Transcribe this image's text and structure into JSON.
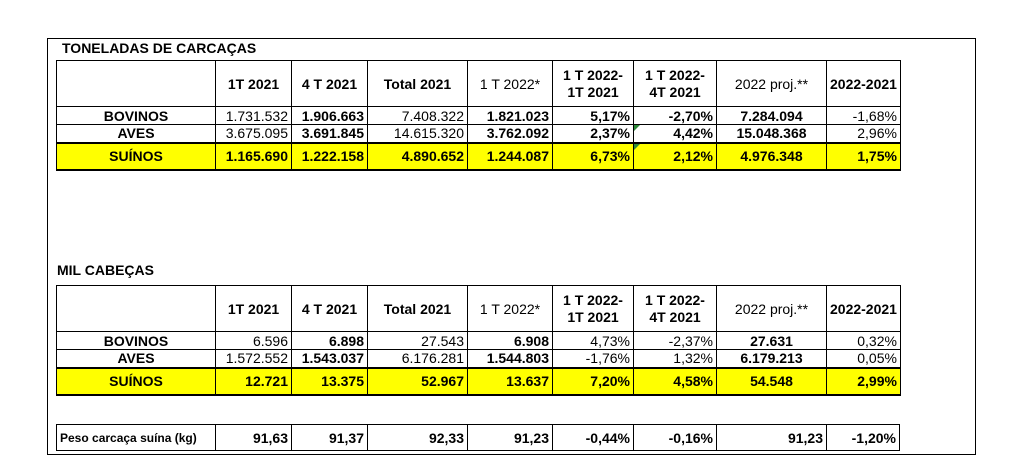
{
  "section1": {
    "title": "TONELADAS DE CARCAÇAS",
    "headers": [
      "",
      "1T 2021",
      "4 T 2021",
      "Total 2021",
      "1 T 2022*",
      "1 T 2022-\n1T 2021",
      "1 T 2022-\n4T 2021",
      "2022 proj.**",
      "2022-2021"
    ],
    "rows": [
      {
        "label": "BOVINOS",
        "values": [
          "1.731.532",
          "1.906.663",
          "7.408.322",
          "1.821.023",
          "5,17%",
          "-2,70%",
          "7.284.094",
          "-1,68%"
        ]
      },
      {
        "label": "AVES",
        "values": [
          "3.675.095",
          "3.691.845",
          "14.615.320",
          "3.762.092",
          "2,37%",
          "4,42%",
          "15.048.368",
          "2,96%"
        ]
      },
      {
        "label": "SUÍNOS",
        "values": [
          "1.165.690",
          "1.222.158",
          "4.890.652",
          "1.244.087",
          "6,73%",
          "2,12%",
          "4.976.348",
          "1,75%"
        ]
      }
    ]
  },
  "section2": {
    "title": "MIL CABEÇAS",
    "headers": [
      "",
      "1T 2021",
      "4 T 2021",
      "Total 2021",
      "1 T 2022*",
      "1 T 2022-\n1T 2021",
      "1 T 2022-\n4T 2021",
      "2022 proj.**",
      "2022-2021"
    ],
    "rows": [
      {
        "label": "BOVINOS",
        "values": [
          "6.596",
          "6.898",
          "27.543",
          "6.908",
          "4,73%",
          "-2,37%",
          "27.631",
          "0,32%"
        ]
      },
      {
        "label": "AVES",
        "values": [
          "1.572.552",
          "1.543.037",
          "6.176.281",
          "1.544.803",
          "-1,76%",
          "1,32%",
          "6.179.213",
          "0,05%"
        ]
      },
      {
        "label": "SUÍNOS",
        "values": [
          "12.721",
          "13.375",
          "52.967",
          "13.637",
          "7,20%",
          "4,58%",
          "54.548",
          "2,99%"
        ]
      }
    ],
    "peso": {
      "label": "Peso carcaça suína (kg)",
      "values": [
        "91,63",
        "91,37",
        "92,33",
        "91,23",
        "-0,44%",
        "-0,16%",
        "91,23",
        "-1,20%"
      ]
    }
  },
  "colors": {
    "highlight": "#ffff00",
    "marker": "#2e8b3a"
  }
}
